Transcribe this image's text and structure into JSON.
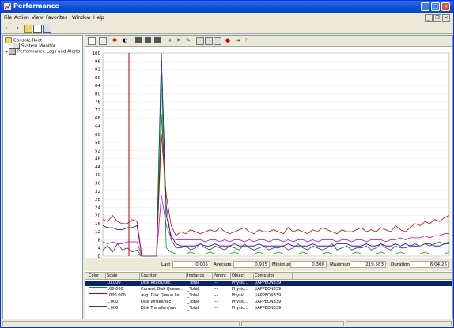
{
  "window": {
    "title": "Performance"
  },
  "menu": {
    "items": [
      "File",
      "Action",
      "View",
      "Favorites",
      "Window",
      "Help"
    ]
  },
  "tree": {
    "root": "Console Root",
    "items": [
      "System Monitor",
      "Performance Logs and Alerts"
    ]
  },
  "graph": {
    "y_ticks": [
      "100",
      "96",
      "92",
      "88",
      "84",
      "80",
      "76",
      "72",
      "68",
      "64",
      "60",
      "56",
      "52",
      "48",
      "44",
      "40",
      "36",
      "32",
      "28",
      "24",
      "20",
      "16",
      "12",
      "8",
      "4",
      "0"
    ],
    "ylim": [
      0,
      100
    ],
    "grid": true
  },
  "stats": {
    "last_label": "Last",
    "last_value": "0.005",
    "average_label": "Average",
    "average_value": "0.935",
    "minimum_label": "Minimum",
    "minimum_value": "0.300",
    "maximum_label": "Maximum",
    "maximum_value": "219.583",
    "duration_label": "Duration",
    "duration_value": "6:04:25"
  },
  "legend": {
    "headers": [
      "Color",
      "Scale",
      "Counter",
      "Instance",
      "Parent",
      "Object",
      "Computer"
    ],
    "rows": [
      {
        "color": "#0000C0",
        "scale": "10.000",
        "counter": "Disk Reads/sec",
        "instance": "_Total",
        "parent": "---",
        "object": "Physic...",
        "computer": "\\\\APPEON339"
      },
      {
        "color": "#00A000",
        "scale": "100.000",
        "counter": "Current Disk Queue...",
        "instance": "_Total",
        "parent": "---",
        "object": "Physic...",
        "computer": "\\\\APPEON339"
      },
      {
        "color": "#C00000",
        "scale": "1000.000",
        "counter": "Avg. Disk Queue Le...",
        "instance": "_Total",
        "parent": "---",
        "object": "Physic...",
        "computer": "\\\\APPEON339"
      },
      {
        "color": "#C000C0",
        "scale": "1.000",
        "counter": "Disk Writes/sec",
        "instance": "_Total",
        "parent": "---",
        "object": "Physic...",
        "computer": "\\\\APPEON339"
      },
      {
        "color": "#404040",
        "scale": "1.000",
        "counter": "Disk Transfers/sec",
        "instance": "_Total",
        "parent": "---",
        "object": "Physic...",
        "computer": "\\\\APPEON339"
      }
    ]
  },
  "chart_data": {
    "type": "line",
    "ylim": [
      0,
      100
    ],
    "series": [
      {
        "name": "Disk Reads/sec",
        "color": "#0000C0",
        "values": [
          15,
          14,
          14,
          13,
          13,
          14,
          14,
          15,
          0,
          0,
          0,
          0,
          100,
          20,
          10,
          6,
          5,
          5,
          5,
          5,
          6,
          5,
          5,
          6,
          5,
          5,
          5,
          6,
          5,
          5,
          5,
          5,
          6,
          5,
          5,
          5,
          5,
          5,
          6,
          5,
          5,
          5,
          5,
          6,
          5,
          5,
          5,
          5,
          6,
          6,
          6,
          5,
          5,
          5,
          6,
          5,
          5,
          6,
          5,
          5,
          6,
          5,
          6,
          5,
          5,
          5,
          6,
          6,
          5,
          5,
          6,
          6
        ]
      },
      {
        "name": "Current Disk Queue...",
        "color": "#00A000",
        "values": [
          1,
          1,
          1,
          1,
          1,
          1,
          1,
          1,
          0,
          0,
          0,
          0,
          90,
          4,
          2,
          1,
          1,
          1,
          2,
          1,
          1,
          1,
          2,
          1,
          1,
          1,
          1,
          2,
          1,
          1,
          1,
          1,
          2,
          1,
          1,
          1,
          2,
          1,
          1,
          1,
          1,
          2,
          1,
          1,
          1,
          1,
          2,
          1,
          1,
          1,
          1,
          1,
          2,
          1,
          1,
          1,
          1,
          2,
          1,
          1,
          1,
          2,
          1,
          1,
          1,
          1,
          2,
          1,
          1,
          1,
          1,
          2
        ]
      },
      {
        "name": "Avg. Disk Queue Le...",
        "color": "#C00000",
        "values": [
          18,
          17,
          20,
          17,
          16,
          16,
          18,
          17,
          0,
          0,
          0,
          0,
          60,
          30,
          15,
          10,
          12,
          11,
          13,
          12,
          11,
          12,
          13,
          12,
          14,
          12,
          11,
          12,
          13,
          14,
          12,
          11,
          13,
          12,
          12,
          13,
          12,
          11,
          14,
          12,
          13,
          12,
          11,
          13,
          12,
          14,
          13,
          12,
          11,
          13,
          12,
          12,
          13,
          14,
          12,
          13,
          12,
          14,
          13,
          12,
          15,
          13,
          12,
          14,
          16,
          15,
          17,
          16,
          18,
          17,
          19,
          20
        ]
      },
      {
        "name": "Disk Writes/sec",
        "color": "#C000C0",
        "values": [
          7,
          6,
          7,
          6,
          6,
          7,
          7,
          7,
          0,
          0,
          0,
          0,
          30,
          15,
          9,
          8,
          8,
          8,
          8,
          8,
          8,
          7,
          8,
          8,
          7,
          8,
          7,
          8,
          8,
          7,
          8,
          7,
          8,
          8,
          7,
          8,
          8,
          7,
          8,
          7,
          8,
          8,
          7,
          8,
          7,
          8,
          8,
          8,
          7,
          8,
          8,
          7,
          8,
          8,
          7,
          8,
          8,
          8,
          7,
          8,
          8,
          9,
          8,
          9,
          9,
          9,
          10,
          9,
          10,
          10,
          11,
          11
        ]
      },
      {
        "name": "Disk Transfers/sec",
        "color": "#404040",
        "values": [
          3,
          5,
          2,
          6,
          3,
          4,
          2,
          3,
          0,
          0,
          0,
          0,
          70,
          25,
          8,
          4,
          4,
          5,
          3,
          4,
          6,
          4,
          3,
          5,
          4,
          3,
          5,
          4,
          3,
          6,
          4,
          3,
          4,
          5,
          3,
          4,
          4,
          5,
          3,
          4,
          6,
          4,
          3,
          5,
          4,
          3,
          4,
          6,
          3,
          4,
          5,
          3,
          4,
          4,
          5,
          3,
          4,
          6,
          4,
          3,
          5,
          4,
          4,
          5,
          6,
          5,
          6,
          5,
          6,
          7,
          6,
          7
        ]
      }
    ]
  }
}
